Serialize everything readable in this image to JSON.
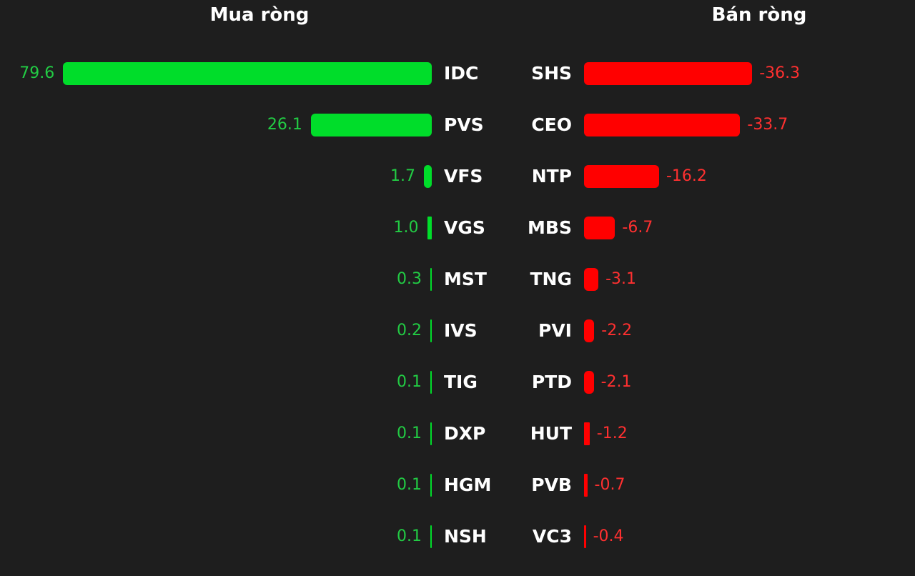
{
  "chart_data": {
    "type": "bar",
    "orientation": "horizontal",
    "colors": {
      "buy_bar": "#00dd2a",
      "buy_text": "#22cc44",
      "sell_bar": "#ff0000",
      "sell_text": "#ff3030",
      "background": "#1e1e1e"
    },
    "panels": [
      {
        "title": "Mua ròng",
        "side": "buy",
        "categories": [
          "IDC",
          "PVS",
          "VFS",
          "VGS",
          "MST",
          "IVS",
          "TIG",
          "DXP",
          "HGM",
          "NSH"
        ],
        "values": [
          79.6,
          26.1,
          1.7,
          1.0,
          0.3,
          0.2,
          0.1,
          0.1,
          0.1,
          0.1
        ],
        "labels": [
          "79.6",
          "26.1",
          "1.7",
          "1.0",
          "0.3",
          "0.2",
          "0.1",
          "0.1",
          "0.1",
          "0.1"
        ]
      },
      {
        "title": "Bán ròng",
        "side": "sell",
        "categories": [
          "SHS",
          "CEO",
          "NTP",
          "MBS",
          "TNG",
          "PVI",
          "PTD",
          "HUT",
          "PVB",
          "VC3"
        ],
        "values": [
          -36.3,
          -33.7,
          -16.2,
          -6.7,
          -3.1,
          -2.2,
          -2.1,
          -1.2,
          -0.7,
          -0.4
        ],
        "labels": [
          "-36.3",
          "-33.7",
          "-16.2",
          "-6.7",
          "-3.1",
          "-2.2",
          "-2.1",
          "-1.2",
          "-0.7",
          "-0.4"
        ]
      }
    ]
  }
}
